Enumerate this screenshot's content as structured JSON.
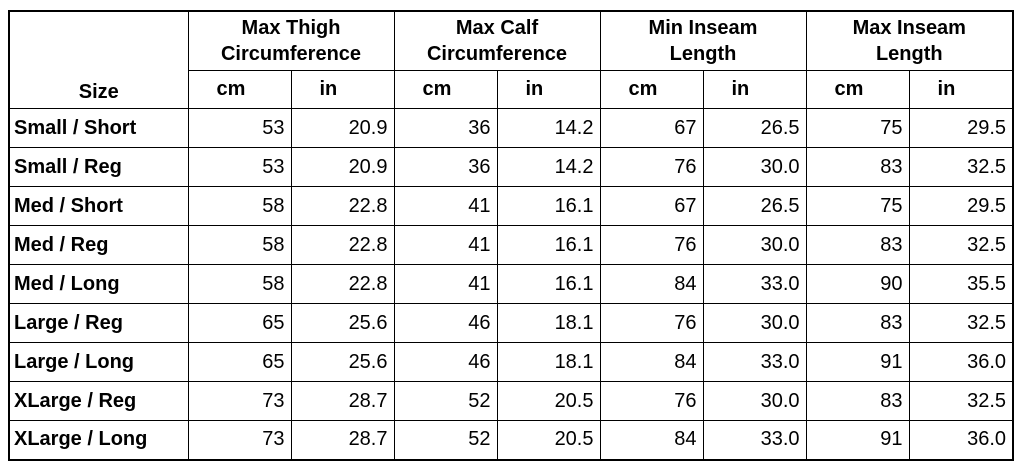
{
  "table": {
    "size_header": "Size",
    "groups": [
      {
        "title_lines": [
          "Max Thigh",
          "Circumference"
        ],
        "units": [
          "cm",
          "in"
        ]
      },
      {
        "title_lines": [
          "Max Calf",
          "Circumference"
        ],
        "units": [
          "cm",
          "in"
        ]
      },
      {
        "title_lines": [
          "Min Inseam",
          "Length"
        ],
        "units": [
          "cm",
          "in"
        ]
      },
      {
        "title_lines": [
          "Max Inseam",
          "Length"
        ],
        "units": [
          "cm",
          "in"
        ]
      }
    ],
    "rows": [
      {
        "size": "Small / Short",
        "values": [
          "53",
          "20.9",
          "36",
          "14.2",
          "67",
          "26.5",
          "75",
          "29.5"
        ]
      },
      {
        "size": "Small / Reg",
        "values": [
          "53",
          "20.9",
          "36",
          "14.2",
          "76",
          "30.0",
          "83",
          "32.5"
        ]
      },
      {
        "size": "Med / Short",
        "values": [
          "58",
          "22.8",
          "41",
          "16.1",
          "67",
          "26.5",
          "75",
          "29.5"
        ]
      },
      {
        "size": "Med / Reg",
        "values": [
          "58",
          "22.8",
          "41",
          "16.1",
          "76",
          "30.0",
          "83",
          "32.5"
        ]
      },
      {
        "size": "Med / Long",
        "values": [
          "58",
          "22.8",
          "41",
          "16.1",
          "84",
          "33.0",
          "90",
          "35.5"
        ]
      },
      {
        "size": "Large / Reg",
        "values": [
          "65",
          "25.6",
          "46",
          "18.1",
          "76",
          "30.0",
          "83",
          "32.5"
        ]
      },
      {
        "size": "Large / Long",
        "values": [
          "65",
          "25.6",
          "46",
          "18.1",
          "84",
          "33.0",
          "91",
          "36.0"
        ]
      },
      {
        "size": "XLarge / Reg",
        "values": [
          "73",
          "28.7",
          "52",
          "20.5",
          "76",
          "30.0",
          "83",
          "32.5"
        ]
      },
      {
        "size": "XLarge / Long",
        "values": [
          "73",
          "28.7",
          "52",
          "20.5",
          "84",
          "33.0",
          "91",
          "36.0"
        ]
      }
    ]
  }
}
